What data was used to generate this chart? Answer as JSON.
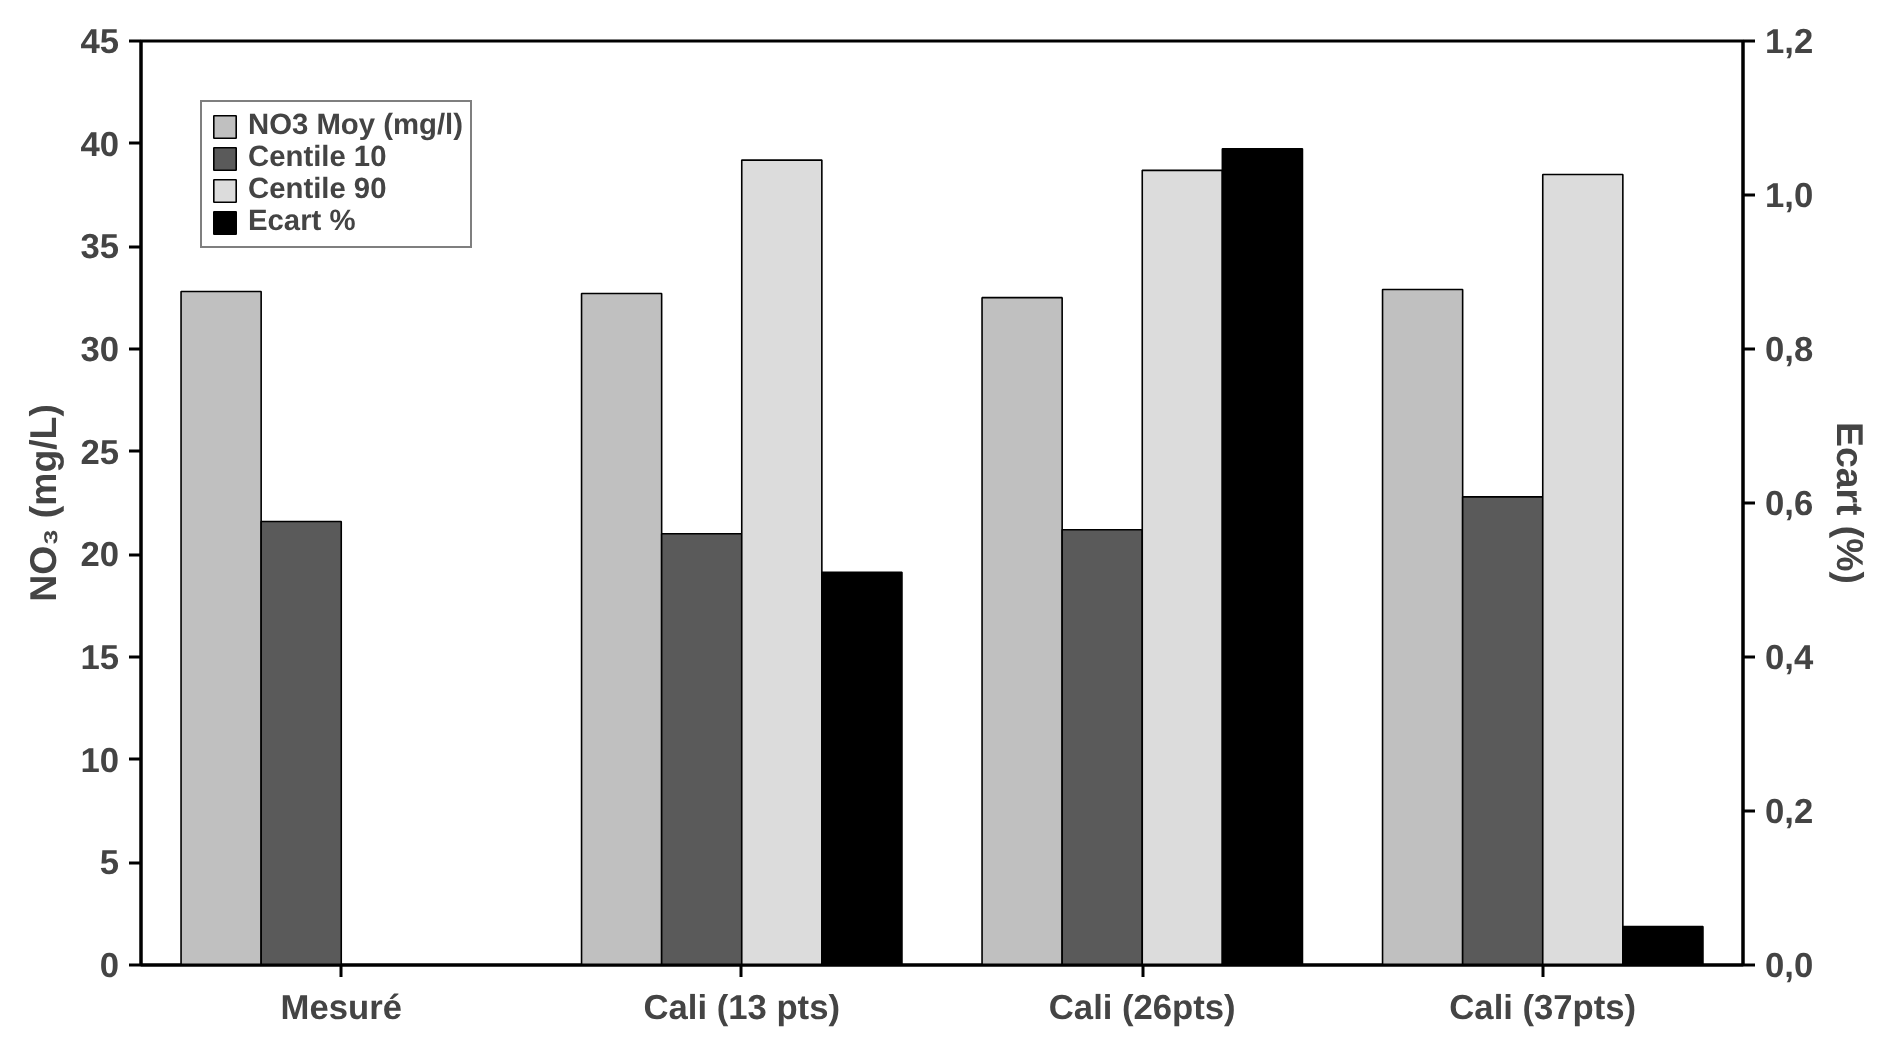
{
  "chart_data": {
    "type": "bar",
    "categories": [
      "Mesuré",
      "Cali (13 pts)",
      "Cali (26pts)",
      "Cali (37pts)"
    ],
    "ylabel": "NO₃ (mg/L)",
    "y2label": "Ecart (%)",
    "ylim": [
      0,
      45
    ],
    "yticks": [
      0,
      5,
      10,
      15,
      20,
      25,
      30,
      35,
      40,
      45
    ],
    "y2lim": [
      0,
      1.2
    ],
    "y2ticks": [
      {
        "value": 0,
        "label": "0,0"
      },
      {
        "value": 0.2,
        "label": "0,2"
      },
      {
        "value": 0.4,
        "label": "0,4"
      },
      {
        "value": 0.6,
        "label": "0,6"
      },
      {
        "value": 0.8,
        "label": "0,8"
      },
      {
        "value": 1.0,
        "label": "1,0"
      },
      {
        "value": 1.2,
        "label": "1,2"
      }
    ],
    "grid": false,
    "legend": "top left",
    "series": [
      {
        "name": "NO3 Moy (mg/l)",
        "color": "#c0c0c0",
        "values": [
          32.8,
          32.7,
          32.5,
          32.9
        ]
      },
      {
        "name": "Centile 10",
        "color": "#5a5a5a",
        "values": [
          21.6,
          21.0,
          21.2,
          22.8
        ]
      },
      {
        "name": "Centile 90",
        "color": "#dcdcdc",
        "values": [
          null,
          39.2,
          38.7,
          38.5
        ]
      },
      {
        "name": "Ecart %",
        "color": "#000000",
        "axis": "y2",
        "values": [
          null,
          0.51,
          1.06,
          0.05
        ]
      }
    ]
  }
}
